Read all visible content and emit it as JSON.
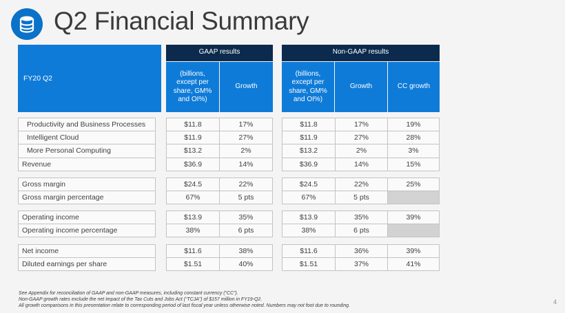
{
  "header": {
    "title": "Q2 Financial Summary",
    "logo_icon": "database-icon"
  },
  "table": {
    "period_label": "FY20 Q2",
    "gaap_header": "GAAP results",
    "nongaap_header": "Non-GAAP results",
    "columns": {
      "billions": "(billions, except per share, GM% and OI%)",
      "growth": "Growth",
      "cc_growth": "CC growth"
    },
    "groups": [
      [
        {
          "label": "Productivity and Business Processes",
          "indent": true,
          "gaap_value": "$11.8",
          "gaap_growth": "17%",
          "ng_value": "$11.8",
          "ng_growth": "17%",
          "cc_growth": "19%"
        },
        {
          "label": "Intelligent Cloud",
          "indent": true,
          "gaap_value": "$11.9",
          "gaap_growth": "27%",
          "ng_value": "$11.9",
          "ng_growth": "27%",
          "cc_growth": "28%"
        },
        {
          "label": "More Personal Computing",
          "indent": true,
          "gaap_value": "$13.2",
          "gaap_growth": "2%",
          "ng_value": "$13.2",
          "ng_growth": "2%",
          "cc_growth": "3%"
        },
        {
          "label": "Revenue",
          "indent": false,
          "gaap_value": "$36.9",
          "gaap_growth": "14%",
          "ng_value": "$36.9",
          "ng_growth": "14%",
          "cc_growth": "15%"
        }
      ],
      [
        {
          "label": "Gross margin",
          "indent": false,
          "gaap_value": "$24.5",
          "gaap_growth": "22%",
          "ng_value": "$24.5",
          "ng_growth": "22%",
          "cc_growth": "25%"
        },
        {
          "label": "Gross margin percentage",
          "indent": false,
          "gaap_value": "67%",
          "gaap_growth": "5 pts",
          "ng_value": "67%",
          "ng_growth": "5 pts",
          "cc_growth": ""
        }
      ],
      [
        {
          "label": "Operating income",
          "indent": false,
          "gaap_value": "$13.9",
          "gaap_growth": "35%",
          "ng_value": "$13.9",
          "ng_growth": "35%",
          "cc_growth": "39%"
        },
        {
          "label": "Operating income percentage",
          "indent": false,
          "gaap_value": "38%",
          "gaap_growth": "6 pts",
          "ng_value": "38%",
          "ng_growth": "6 pts",
          "cc_growth": ""
        }
      ],
      [
        {
          "label": "Net income",
          "indent": false,
          "gaap_value": "$11.6",
          "gaap_growth": "38%",
          "ng_value": "$11.6",
          "ng_growth": "36%",
          "cc_growth": "39%"
        },
        {
          "label": "Diluted earnings per share",
          "indent": false,
          "gaap_value": "$1.51",
          "gaap_growth": "40%",
          "ng_value": "$1.51",
          "ng_growth": "37%",
          "cc_growth": "41%"
        }
      ]
    ]
  },
  "footnotes": [
    "See Appendix for reconciliation of GAAP and non-GAAP measures, including constant currency (“CC”).",
    "Non-GAAP growth rates exclude the net impact of the Tax Cuts and Jobs Act (“TCJA”) of $157 million in FY19-Q2.",
    "All growth comparisons in this presentation relate to corresponding period of last fiscal year unless otherwise noted. Numbers may not foot due to rounding."
  ],
  "page_number": "4",
  "colors": {
    "accent_blue": "#0f7bd8",
    "header_navy": "#0b2a4d",
    "logo_blue": "#0a72c9",
    "empty_cell_gray": "#d2d2d2"
  }
}
